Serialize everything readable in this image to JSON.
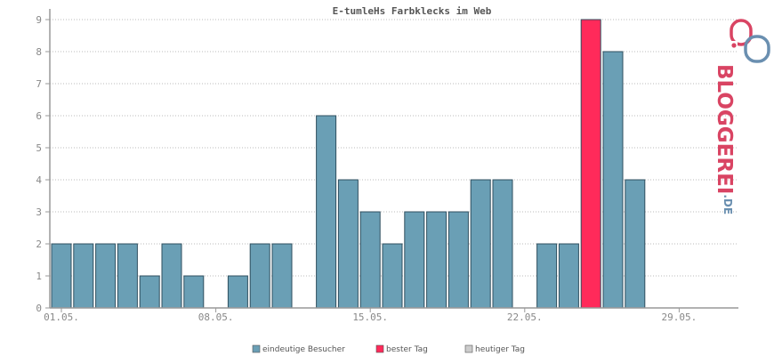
{
  "chart_data": {
    "type": "bar",
    "title": "E-tumleHs Farbklecks im Web",
    "xlabel": "",
    "ylabel": "",
    "ylim": [
      0,
      9
    ],
    "yticks": [
      0,
      1,
      2,
      3,
      4,
      5,
      6,
      7,
      8,
      9
    ],
    "x_tick_labels": [
      "01.05.",
      "08.05.",
      "15.05.",
      "22.05.",
      "29.05."
    ],
    "x_tick_day_index": [
      1,
      8,
      15,
      22,
      29
    ],
    "days": [
      1,
      2,
      3,
      4,
      5,
      6,
      7,
      8,
      9,
      10,
      11,
      12,
      13,
      14,
      15,
      16,
      17,
      18,
      19,
      20,
      21,
      22,
      23,
      24,
      25,
      26,
      27,
      28,
      29,
      30,
      31
    ],
    "values": [
      2,
      2,
      2,
      2,
      1,
      2,
      1,
      0,
      1,
      2,
      2,
      0,
      6,
      4,
      3,
      2,
      3,
      3,
      3,
      4,
      4,
      0,
      2,
      2,
      9,
      8,
      4,
      0,
      0,
      0,
      0
    ],
    "best_day": 25,
    "grid": true,
    "colors": {
      "eindeutige_besucher": "#6a9fb5",
      "bester_tag": "#ff2a5a",
      "heutiger_tag": "#cccccc",
      "bar_border": "#2f4f5f",
      "grid": "#bbbbbb",
      "axis": "#999999"
    },
    "legend": {
      "position": "bottom",
      "items": [
        {
          "label": "eindeutige Besucher",
          "color": "#6a9fb5"
        },
        {
          "label": "bester Tag",
          "color": "#ff2a5a"
        },
        {
          "label": "heutiger Tag",
          "color": "#cccccc"
        }
      ]
    }
  },
  "logo": {
    "text_main": "BLOGGEREI",
    "text_suffix": ".DE",
    "colors": {
      "primary": "#d94463",
      "secondary": "#6a8fb0"
    }
  }
}
